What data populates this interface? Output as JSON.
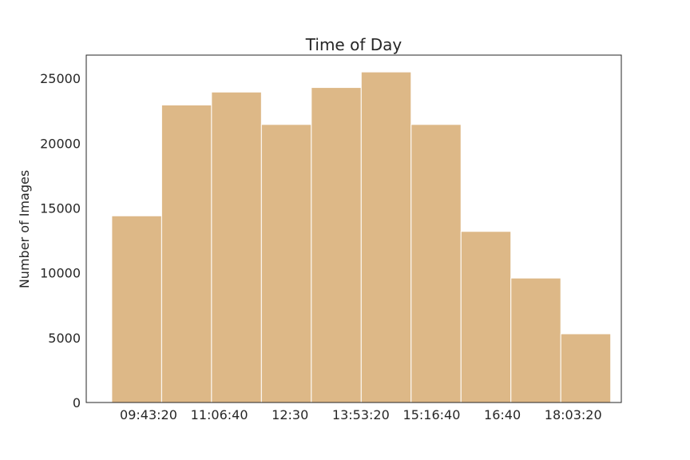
{
  "chart_data": {
    "type": "bar",
    "title": "Time of Day",
    "xlabel": "",
    "ylabel": "Number of Images",
    "bins": [
      {
        "start": "09:00:00",
        "end": "09:58:45",
        "value": 14400
      },
      {
        "start": "09:58:45",
        "end": "10:57:30",
        "value": 22950
      },
      {
        "start": "10:57:30",
        "end": "11:56:15",
        "value": 23950
      },
      {
        "start": "11:56:15",
        "end": "12:55:00",
        "value": 21450
      },
      {
        "start": "12:55:00",
        "end": "13:53:45",
        "value": 24300
      },
      {
        "start": "13:53:45",
        "end": "14:52:30",
        "value": 25500
      },
      {
        "start": "14:52:30",
        "end": "15:51:15",
        "value": 21450
      },
      {
        "start": "15:51:15",
        "end": "16:50:00",
        "value": 13200
      },
      {
        "start": "16:50:00",
        "end": "17:48:45",
        "value": 9600
      },
      {
        "start": "17:48:45",
        "end": "18:47:30",
        "value": 5300
      }
    ],
    "x_ticks": [
      "09:43:20",
      "11:06:40",
      "12:30",
      "13:53:20",
      "15:16:40",
      "16:40",
      "18:03:20"
    ],
    "y_ticks": [
      0,
      5000,
      10000,
      15000,
      20000,
      25000
    ],
    "xlim": [
      "08:30:00",
      "19:00:00"
    ],
    "ylim": [
      0,
      26800
    ],
    "grid": false,
    "legend": "none",
    "bar_color": "#ddb887",
    "bar_edge_color": "#ffffff"
  }
}
